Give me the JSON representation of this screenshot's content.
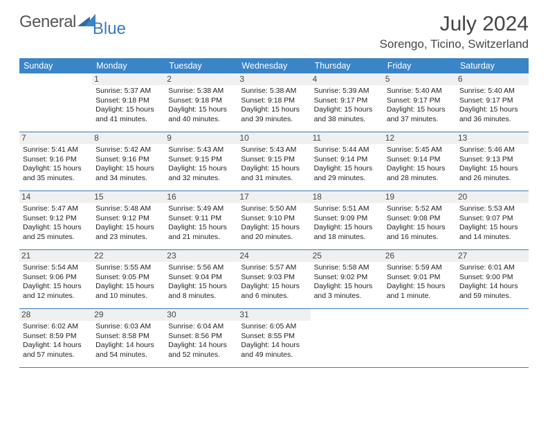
{
  "brand": {
    "general": "General",
    "blue": "Blue"
  },
  "title": "July 2024",
  "location": "Sorengo, Ticino, Switzerland",
  "colors": {
    "header_bg": "#3a84c8",
    "header_text": "#ffffff",
    "accent_border": "#3a7abf",
    "daynum_bg": "#f0f0f0",
    "body_text": "#222222",
    "brand_gray": "#555555",
    "brand_blue": "#3a7abf"
  },
  "day_names": [
    "Sunday",
    "Monday",
    "Tuesday",
    "Wednesday",
    "Thursday",
    "Friday",
    "Saturday"
  ],
  "weeks": [
    [
      {
        "day": "",
        "sunrise": "",
        "sunset": "",
        "daylight1": "",
        "daylight2": ""
      },
      {
        "day": "1",
        "sunrise": "Sunrise: 5:37 AM",
        "sunset": "Sunset: 9:18 PM",
        "daylight1": "Daylight: 15 hours",
        "daylight2": "and 41 minutes."
      },
      {
        "day": "2",
        "sunrise": "Sunrise: 5:38 AM",
        "sunset": "Sunset: 9:18 PM",
        "daylight1": "Daylight: 15 hours",
        "daylight2": "and 40 minutes."
      },
      {
        "day": "3",
        "sunrise": "Sunrise: 5:38 AM",
        "sunset": "Sunset: 9:18 PM",
        "daylight1": "Daylight: 15 hours",
        "daylight2": "and 39 minutes."
      },
      {
        "day": "4",
        "sunrise": "Sunrise: 5:39 AM",
        "sunset": "Sunset: 9:17 PM",
        "daylight1": "Daylight: 15 hours",
        "daylight2": "and 38 minutes."
      },
      {
        "day": "5",
        "sunrise": "Sunrise: 5:40 AM",
        "sunset": "Sunset: 9:17 PM",
        "daylight1": "Daylight: 15 hours",
        "daylight2": "and 37 minutes."
      },
      {
        "day": "6",
        "sunrise": "Sunrise: 5:40 AM",
        "sunset": "Sunset: 9:17 PM",
        "daylight1": "Daylight: 15 hours",
        "daylight2": "and 36 minutes."
      }
    ],
    [
      {
        "day": "7",
        "sunrise": "Sunrise: 5:41 AM",
        "sunset": "Sunset: 9:16 PM",
        "daylight1": "Daylight: 15 hours",
        "daylight2": "and 35 minutes."
      },
      {
        "day": "8",
        "sunrise": "Sunrise: 5:42 AM",
        "sunset": "Sunset: 9:16 PM",
        "daylight1": "Daylight: 15 hours",
        "daylight2": "and 34 minutes."
      },
      {
        "day": "9",
        "sunrise": "Sunrise: 5:43 AM",
        "sunset": "Sunset: 9:15 PM",
        "daylight1": "Daylight: 15 hours",
        "daylight2": "and 32 minutes."
      },
      {
        "day": "10",
        "sunrise": "Sunrise: 5:43 AM",
        "sunset": "Sunset: 9:15 PM",
        "daylight1": "Daylight: 15 hours",
        "daylight2": "and 31 minutes."
      },
      {
        "day": "11",
        "sunrise": "Sunrise: 5:44 AM",
        "sunset": "Sunset: 9:14 PM",
        "daylight1": "Daylight: 15 hours",
        "daylight2": "and 29 minutes."
      },
      {
        "day": "12",
        "sunrise": "Sunrise: 5:45 AM",
        "sunset": "Sunset: 9:14 PM",
        "daylight1": "Daylight: 15 hours",
        "daylight2": "and 28 minutes."
      },
      {
        "day": "13",
        "sunrise": "Sunrise: 5:46 AM",
        "sunset": "Sunset: 9:13 PM",
        "daylight1": "Daylight: 15 hours",
        "daylight2": "and 26 minutes."
      }
    ],
    [
      {
        "day": "14",
        "sunrise": "Sunrise: 5:47 AM",
        "sunset": "Sunset: 9:12 PM",
        "daylight1": "Daylight: 15 hours",
        "daylight2": "and 25 minutes."
      },
      {
        "day": "15",
        "sunrise": "Sunrise: 5:48 AM",
        "sunset": "Sunset: 9:12 PM",
        "daylight1": "Daylight: 15 hours",
        "daylight2": "and 23 minutes."
      },
      {
        "day": "16",
        "sunrise": "Sunrise: 5:49 AM",
        "sunset": "Sunset: 9:11 PM",
        "daylight1": "Daylight: 15 hours",
        "daylight2": "and 21 minutes."
      },
      {
        "day": "17",
        "sunrise": "Sunrise: 5:50 AM",
        "sunset": "Sunset: 9:10 PM",
        "daylight1": "Daylight: 15 hours",
        "daylight2": "and 20 minutes."
      },
      {
        "day": "18",
        "sunrise": "Sunrise: 5:51 AM",
        "sunset": "Sunset: 9:09 PM",
        "daylight1": "Daylight: 15 hours",
        "daylight2": "and 18 minutes."
      },
      {
        "day": "19",
        "sunrise": "Sunrise: 5:52 AM",
        "sunset": "Sunset: 9:08 PM",
        "daylight1": "Daylight: 15 hours",
        "daylight2": "and 16 minutes."
      },
      {
        "day": "20",
        "sunrise": "Sunrise: 5:53 AM",
        "sunset": "Sunset: 9:07 PM",
        "daylight1": "Daylight: 15 hours",
        "daylight2": "and 14 minutes."
      }
    ],
    [
      {
        "day": "21",
        "sunrise": "Sunrise: 5:54 AM",
        "sunset": "Sunset: 9:06 PM",
        "daylight1": "Daylight: 15 hours",
        "daylight2": "and 12 minutes."
      },
      {
        "day": "22",
        "sunrise": "Sunrise: 5:55 AM",
        "sunset": "Sunset: 9:05 PM",
        "daylight1": "Daylight: 15 hours",
        "daylight2": "and 10 minutes."
      },
      {
        "day": "23",
        "sunrise": "Sunrise: 5:56 AM",
        "sunset": "Sunset: 9:04 PM",
        "daylight1": "Daylight: 15 hours",
        "daylight2": "and 8 minutes."
      },
      {
        "day": "24",
        "sunrise": "Sunrise: 5:57 AM",
        "sunset": "Sunset: 9:03 PM",
        "daylight1": "Daylight: 15 hours",
        "daylight2": "and 6 minutes."
      },
      {
        "day": "25",
        "sunrise": "Sunrise: 5:58 AM",
        "sunset": "Sunset: 9:02 PM",
        "daylight1": "Daylight: 15 hours",
        "daylight2": "and 3 minutes."
      },
      {
        "day": "26",
        "sunrise": "Sunrise: 5:59 AM",
        "sunset": "Sunset: 9:01 PM",
        "daylight1": "Daylight: 15 hours",
        "daylight2": "and 1 minute."
      },
      {
        "day": "27",
        "sunrise": "Sunrise: 6:01 AM",
        "sunset": "Sunset: 9:00 PM",
        "daylight1": "Daylight: 14 hours",
        "daylight2": "and 59 minutes."
      }
    ],
    [
      {
        "day": "28",
        "sunrise": "Sunrise: 6:02 AM",
        "sunset": "Sunset: 8:59 PM",
        "daylight1": "Daylight: 14 hours",
        "daylight2": "and 57 minutes."
      },
      {
        "day": "29",
        "sunrise": "Sunrise: 6:03 AM",
        "sunset": "Sunset: 8:58 PM",
        "daylight1": "Daylight: 14 hours",
        "daylight2": "and 54 minutes."
      },
      {
        "day": "30",
        "sunrise": "Sunrise: 6:04 AM",
        "sunset": "Sunset: 8:56 PM",
        "daylight1": "Daylight: 14 hours",
        "daylight2": "and 52 minutes."
      },
      {
        "day": "31",
        "sunrise": "Sunrise: 6:05 AM",
        "sunset": "Sunset: 8:55 PM",
        "daylight1": "Daylight: 14 hours",
        "daylight2": "and 49 minutes."
      },
      {
        "day": "",
        "sunrise": "",
        "sunset": "",
        "daylight1": "",
        "daylight2": ""
      },
      {
        "day": "",
        "sunrise": "",
        "sunset": "",
        "daylight1": "",
        "daylight2": ""
      },
      {
        "day": "",
        "sunrise": "",
        "sunset": "",
        "daylight1": "",
        "daylight2": ""
      }
    ]
  ]
}
